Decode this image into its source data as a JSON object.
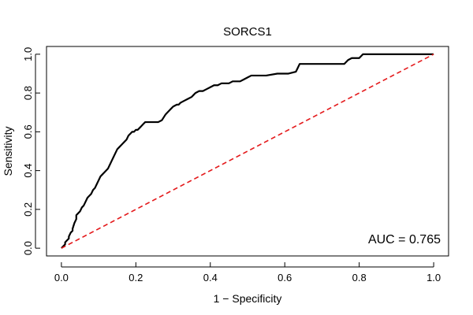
{
  "chart_data": {
    "type": "line",
    "title": "SORCS1",
    "xlabel": "1 − Specificity",
    "ylabel": "Sensitivity",
    "xlim": [
      -0.04,
      1.04
    ],
    "ylim": [
      -0.04,
      1.04
    ],
    "x_ticks": [
      0.0,
      0.2,
      0.4,
      0.6,
      0.8,
      1.0
    ],
    "x_tick_labels": [
      "0.0",
      "0.2",
      "0.4",
      "0.6",
      "0.8",
      "1.0"
    ],
    "y_ticks": [
      0.0,
      0.2,
      0.4,
      0.6,
      0.8,
      1.0
    ],
    "y_tick_labels": [
      "0.0",
      "0.2",
      "0.4",
      "0.6",
      "0.8",
      "1.0"
    ],
    "grid": false,
    "annotation": "AUC = 0.765",
    "series": [
      {
        "style": "solid",
        "color": "#000000",
        "x": [
          0.0,
          0.005,
          0.01,
          0.01,
          0.015,
          0.02,
          0.02,
          0.025,
          0.03,
          0.03,
          0.035,
          0.04,
          0.04,
          0.045,
          0.05,
          0.055,
          0.06,
          0.065,
          0.07,
          0.075,
          0.08,
          0.085,
          0.09,
          0.095,
          0.1,
          0.105,
          0.11,
          0.115,
          0.12,
          0.125,
          0.13,
          0.135,
          0.14,
          0.145,
          0.15,
          0.155,
          0.16,
          0.165,
          0.17,
          0.175,
          0.18,
          0.185,
          0.19,
          0.195,
          0.2,
          0.205,
          0.21,
          0.215,
          0.22,
          0.225,
          0.23,
          0.235,
          0.24,
          0.25,
          0.26,
          0.27,
          0.28,
          0.285,
          0.29,
          0.295,
          0.3,
          0.31,
          0.315,
          0.32,
          0.33,
          0.34,
          0.35,
          0.355,
          0.36,
          0.37,
          0.38,
          0.39,
          0.4,
          0.41,
          0.42,
          0.43,
          0.44,
          0.45,
          0.46,
          0.47,
          0.48,
          0.49,
          0.5,
          0.51,
          0.52,
          0.55,
          0.58,
          0.61,
          0.63,
          0.635,
          0.64,
          0.67,
          0.7,
          0.76,
          0.77,
          0.78,
          0.8,
          0.81,
          0.9,
          1.0
        ],
        "y": [
          0.0,
          0.01,
          0.02,
          0.03,
          0.04,
          0.05,
          0.06,
          0.08,
          0.09,
          0.1,
          0.13,
          0.15,
          0.17,
          0.18,
          0.19,
          0.21,
          0.22,
          0.24,
          0.26,
          0.27,
          0.28,
          0.3,
          0.31,
          0.33,
          0.35,
          0.37,
          0.38,
          0.39,
          0.4,
          0.41,
          0.43,
          0.45,
          0.47,
          0.49,
          0.51,
          0.52,
          0.53,
          0.54,
          0.55,
          0.56,
          0.58,
          0.59,
          0.6,
          0.6,
          0.61,
          0.61,
          0.62,
          0.63,
          0.64,
          0.65,
          0.65,
          0.65,
          0.65,
          0.65,
          0.65,
          0.66,
          0.69,
          0.7,
          0.71,
          0.72,
          0.73,
          0.74,
          0.74,
          0.75,
          0.76,
          0.77,
          0.78,
          0.79,
          0.8,
          0.81,
          0.81,
          0.82,
          0.83,
          0.84,
          0.84,
          0.85,
          0.85,
          0.85,
          0.86,
          0.86,
          0.86,
          0.87,
          0.88,
          0.89,
          0.89,
          0.89,
          0.9,
          0.9,
          0.91,
          0.93,
          0.95,
          0.95,
          0.95,
          0.95,
          0.97,
          0.98,
          0.98,
          1.0,
          1.0,
          1.0
        ]
      },
      {
        "style": "dashed",
        "color": "#e41a1c",
        "x": [
          0.0,
          1.0
        ],
        "y": [
          0.0,
          1.0
        ]
      }
    ]
  }
}
